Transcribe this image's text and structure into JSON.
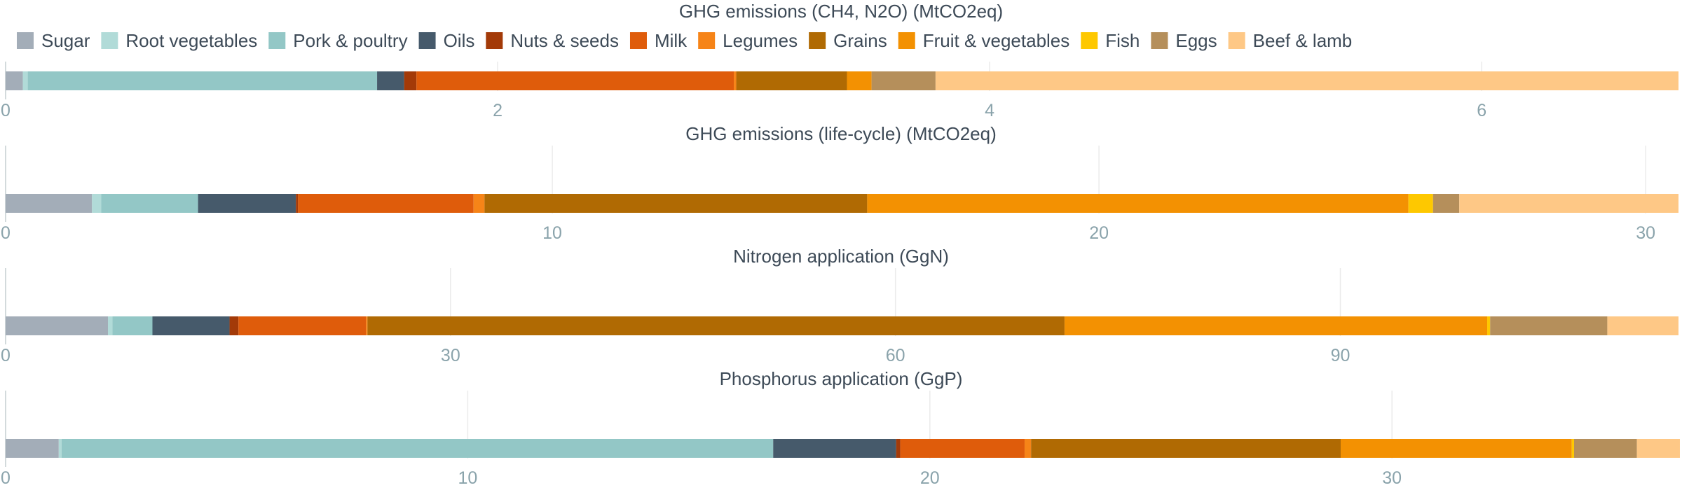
{
  "legend": [
    {
      "name": "Sugar",
      "color": "#a3adb8"
    },
    {
      "name": "Root vegetables",
      "color": "#b1dbd8"
    },
    {
      "name": "Pork & poultry",
      "color": "#93c7c6"
    },
    {
      "name": "Oils",
      "color": "#465a6b"
    },
    {
      "name": "Nuts & seeds",
      "color": "#a33a08"
    },
    {
      "name": "Milk",
      "color": "#df5c0b"
    },
    {
      "name": "Legumes",
      "color": "#f68418"
    },
    {
      "name": "Grains",
      "color": "#b06a03"
    },
    {
      "name": "Fruit & vegetables",
      "color": "#f39102"
    },
    {
      "name": "Fish",
      "color": "#fec800"
    },
    {
      "name": "Eggs",
      "color": "#b58f5b"
    },
    {
      "name": "Beef & lamb",
      "color": "#fec886"
    }
  ],
  "chart_data": [
    {
      "type": "bar",
      "orientation": "horizontal-stacked",
      "title": "GHG emissions (CH4, N2O) (MtCO2eq)",
      "xlim": [
        0,
        6.8
      ],
      "ticks": [
        0,
        2,
        4,
        6
      ],
      "series": [
        {
          "name": "Sugar",
          "value": 0.07
        },
        {
          "name": "Root vegetables",
          "value": 0.02
        },
        {
          "name": "Pork & poultry",
          "value": 1.42
        },
        {
          "name": "Oils",
          "value": 0.11
        },
        {
          "name": "Nuts & seeds",
          "value": 0.05
        },
        {
          "name": "Milk",
          "value": 1.29
        },
        {
          "name": "Legumes",
          "value": 0.01
        },
        {
          "name": "Grains",
          "value": 0.45
        },
        {
          "name": "Fruit & vegetables",
          "value": 0.1
        },
        {
          "name": "Fish",
          "value": 0.0
        },
        {
          "name": "Eggs",
          "value": 0.26
        },
        {
          "name": "Beef & lamb",
          "value": 3.02
        }
      ]
    },
    {
      "type": "bar",
      "orientation": "horizontal-stacked",
      "title": "GHG emissions (life-cycle) (MtCO2eq)",
      "xlim": [
        0,
        30.6
      ],
      "ticks": [
        0,
        10,
        20,
        30
      ],
      "series": [
        {
          "name": "Sugar",
          "value": 1.58
        },
        {
          "name": "Root vegetables",
          "value": 0.17
        },
        {
          "name": "Pork & poultry",
          "value": 1.77
        },
        {
          "name": "Oils",
          "value": 1.79
        },
        {
          "name": "Nuts & seeds",
          "value": 0.04
        },
        {
          "name": "Milk",
          "value": 3.21
        },
        {
          "name": "Legumes",
          "value": 0.2
        },
        {
          "name": "Grains",
          "value": 7.0
        },
        {
          "name": "Fruit & vegetables",
          "value": 9.9
        },
        {
          "name": "Fish",
          "value": 0.45
        },
        {
          "name": "Eggs",
          "value": 0.48
        },
        {
          "name": "Beef & lamb",
          "value": 4.01
        }
      ]
    },
    {
      "type": "bar",
      "orientation": "horizontal-stacked",
      "title": "Nitrogen application (GgN)",
      "xlim": [
        0,
        112.8
      ],
      "ticks": [
        0,
        30,
        60,
        90
      ],
      "series": [
        {
          "name": "Sugar",
          "value": 6.9
        },
        {
          "name": "Root vegetables",
          "value": 0.3
        },
        {
          "name": "Pork & poultry",
          "value": 2.7
        },
        {
          "name": "Oils",
          "value": 5.2
        },
        {
          "name": "Nuts & seeds",
          "value": 0.6
        },
        {
          "name": "Milk",
          "value": 8.6
        },
        {
          "name": "Legumes",
          "value": 0.1
        },
        {
          "name": "Grains",
          "value": 47.0
        },
        {
          "name": "Fruit & vegetables",
          "value": 28.5
        },
        {
          "name": "Fish",
          "value": 0.2
        },
        {
          "name": "Eggs",
          "value": 7.9
        },
        {
          "name": "Beef & lamb",
          "value": 4.8
        }
      ]
    },
    {
      "type": "bar",
      "orientation": "horizontal-stacked",
      "title": "Phosphorus application (GgP)",
      "xlim": [
        0,
        36.2
      ],
      "ticks": [
        0,
        10,
        20,
        30
      ],
      "series": [
        {
          "name": "Sugar",
          "value": 1.15
        },
        {
          "name": "Root vegetables",
          "value": 0.06
        },
        {
          "name": "Pork & poultry",
          "value": 15.4
        },
        {
          "name": "Oils",
          "value": 2.66
        },
        {
          "name": "Nuts & seeds",
          "value": 0.09
        },
        {
          "name": "Milk",
          "value": 2.69
        },
        {
          "name": "Legumes",
          "value": 0.14
        },
        {
          "name": "Grains",
          "value": 6.7
        },
        {
          "name": "Fruit & vegetables",
          "value": 5.0
        },
        {
          "name": "Fish",
          "value": 0.05
        },
        {
          "name": "Eggs",
          "value": 1.36
        },
        {
          "name": "Beef & lamb",
          "value": 0.93
        }
      ]
    }
  ]
}
